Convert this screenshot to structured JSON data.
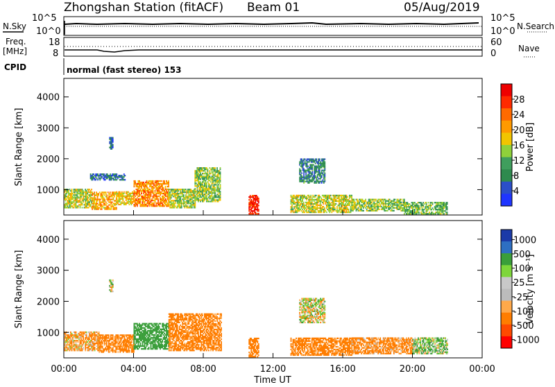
{
  "header": {
    "title": "Zhongshan Station (fitACF)",
    "beam": "Beam 01",
    "date": "05/Aug/2019"
  },
  "strips": {
    "sky": {
      "left_label": "N.Sky",
      "right_label": "N.Search",
      "left_ticks": [
        "10^5",
        "10^0"
      ],
      "right_ticks": [
        "10^5",
        "10^0"
      ]
    },
    "freq": {
      "left_label_1": "Freq.",
      "left_label_2": "[MHz]",
      "right_label": "Nave",
      "left_ticks": [
        "18",
        "8"
      ],
      "right_ticks": [
        "60",
        "0"
      ]
    },
    "cpid": {
      "label": "CPID",
      "text": "normal (fast stereo) 153"
    }
  },
  "colors": {
    "power_scale": [
      "#1f35ff",
      "#2b4fc9",
      "#2e8a4e",
      "#3f9e5d",
      "#8fd13a",
      "#f2c500",
      "#ff9a00",
      "#ff6a00",
      "#ff2a00",
      "#ee0000"
    ],
    "velocity_scale": [
      "#ff0000",
      "#ff4a00",
      "#ff7d00",
      "#ffa94a",
      "#bcbcbc",
      "#c8c8c8",
      "#7ed63a",
      "#3a9e3a",
      "#2e6fc2",
      "#1b3aa8"
    ]
  },
  "chart_data": [
    {
      "type": "heatmap",
      "name": "power-panel",
      "title": "",
      "xlabel": "Time UT",
      "ylabel": "Slant Range [km]",
      "xlim": [
        0,
        24
      ],
      "ylim": [
        180,
        4600
      ],
      "x_ticks": [
        "00:00",
        "04:00",
        "08:00",
        "12:00",
        "16:00",
        "20:00",
        "00:00"
      ],
      "y_ticks": [
        "1000",
        "2000",
        "3000",
        "4000"
      ],
      "y_tick_values": [
        1000,
        2000,
        3000,
        4000
      ],
      "colorbar": {
        "label": "Power [dB]",
        "ticks": [
          "4",
          "8",
          "12",
          "16",
          "20",
          "24",
          "28"
        ],
        "range": [
          0,
          32
        ]
      },
      "regions": [
        {
          "t0": 0.0,
          "t1": 1.6,
          "r0": 400,
          "r1": 1000,
          "value": 16
        },
        {
          "t0": 1.6,
          "t1": 3.0,
          "r0": 350,
          "r1": 900,
          "value": 20
        },
        {
          "t0": 3.0,
          "t1": 4.0,
          "r0": 500,
          "r1": 950,
          "value": 18
        },
        {
          "t0": 4.0,
          "t1": 6.0,
          "r0": 450,
          "r1": 1300,
          "value": 22
        },
        {
          "t0": 6.0,
          "t1": 7.5,
          "r0": 400,
          "r1": 1000,
          "value": 15
        },
        {
          "t0": 7.5,
          "t1": 9.0,
          "r0": 600,
          "r1": 1700,
          "value": 14
        },
        {
          "t0": 10.6,
          "t1": 11.2,
          "r0": 200,
          "r1": 800,
          "value": 28
        },
        {
          "t0": 13.0,
          "t1": 16.5,
          "r0": 250,
          "r1": 800,
          "value": 16
        },
        {
          "t0": 13.5,
          "t1": 15.0,
          "r0": 1200,
          "r1": 2000,
          "value": 8
        },
        {
          "t0": 16.5,
          "t1": 19.5,
          "r0": 300,
          "r1": 700,
          "value": 14
        },
        {
          "t0": 19.5,
          "t1": 22.0,
          "r0": 200,
          "r1": 600,
          "value": 12
        },
        {
          "t0": 1.5,
          "t1": 3.5,
          "r0": 1300,
          "r1": 1500,
          "value": 6
        },
        {
          "t0": 2.6,
          "t1": 2.8,
          "r0": 2300,
          "r1": 2700,
          "value": 6
        }
      ]
    },
    {
      "type": "heatmap",
      "name": "velocity-panel",
      "title": "",
      "xlabel": "Time UT",
      "ylabel": "Slant Range [km]",
      "xlim": [
        0,
        24
      ],
      "ylim": [
        180,
        4600
      ],
      "x_ticks": [
        "00:00",
        "04:00",
        "08:00",
        "12:00",
        "16:00",
        "20:00",
        "00:00"
      ],
      "y_ticks": [
        "1000",
        "2000",
        "3000",
        "4000"
      ],
      "y_tick_values": [
        1000,
        2000,
        3000,
        4000
      ],
      "colorbar": {
        "label": "Velocity [m s⁻¹]",
        "ticks": [
          "1000",
          "500",
          "100",
          "25",
          "-25",
          "-100",
          "-500",
          "-1000"
        ]
      },
      "regions": [
        {
          "t0": 0.0,
          "t1": 2.0,
          "r0": 400,
          "r1": 1000,
          "value": -100
        },
        {
          "t0": 2.0,
          "t1": 4.0,
          "r0": 350,
          "r1": 900,
          "value": -200
        },
        {
          "t0": 4.0,
          "t1": 6.0,
          "r0": 450,
          "r1": 1300,
          "value": 300
        },
        {
          "t0": 6.0,
          "t1": 9.0,
          "r0": 400,
          "r1": 1600,
          "value": -200
        },
        {
          "t0": 10.6,
          "t1": 11.2,
          "r0": 200,
          "r1": 800,
          "value": -300
        },
        {
          "t0": 13.0,
          "t1": 16.5,
          "r0": 250,
          "r1": 800,
          "value": -200
        },
        {
          "t0": 13.5,
          "t1": 15.0,
          "r0": 1300,
          "r1": 2100,
          "value": 0
        },
        {
          "t0": 16.5,
          "t1": 20.0,
          "r0": 300,
          "r1": 800,
          "value": -150
        },
        {
          "t0": 20.0,
          "t1": 22.0,
          "r0": 300,
          "r1": 800,
          "value": 80
        },
        {
          "t0": 2.6,
          "t1": 2.8,
          "r0": 2300,
          "r1": 2700,
          "value": 0
        }
      ]
    }
  ]
}
